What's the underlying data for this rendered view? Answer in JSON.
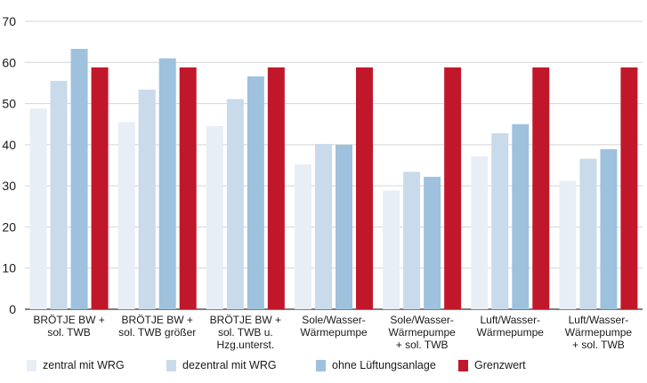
{
  "chart_data": {
    "type": "bar",
    "ylim": [
      0,
      70
    ],
    "yticks": [
      0,
      10,
      20,
      30,
      40,
      50,
      60,
      70
    ],
    "grid": true,
    "legend_position": "bottom",
    "categories": [
      [
        "BRÖTJE BW +",
        "sol. TWB"
      ],
      [
        "BRÖTJE BW +",
        "sol. TWB größer"
      ],
      [
        "BRÖTJE BW +",
        "sol. TWB u.",
        "Hzg.unterst."
      ],
      [
        "Sole/Wasser-",
        "Wärmepumpe"
      ],
      [
        "Sole/Wasser-",
        "Wärmepumpe",
        "+ sol. TWB"
      ],
      [
        "Luft/Wasser-",
        "Wärmepumpe"
      ],
      [
        "Luft/Wasser-",
        "Wärmepumpe",
        "+ sol. TWB"
      ]
    ],
    "series": [
      {
        "name": "zentral mit WRG",
        "color": "#e8eef6",
        "values": [
          48.8,
          45.5,
          44.5,
          35.2,
          28.9,
          37.2,
          31.2
        ]
      },
      {
        "name": "dezentral mit WRG",
        "color": "#c9daea",
        "values": [
          55.5,
          53.4,
          51.1,
          40.2,
          33.4,
          42.8,
          36.6
        ]
      },
      {
        "name": "ohne Lüftungsanlage",
        "color": "#9ec1dd",
        "values": [
          63.3,
          61.0,
          56.6,
          40.0,
          32.2,
          45.0,
          38.9
        ]
      },
      {
        "name": "Grenzwert",
        "color": "#c0182a",
        "values": [
          58.8,
          58.8,
          58.8,
          58.8,
          58.8,
          58.8,
          58.8
        ]
      }
    ]
  }
}
